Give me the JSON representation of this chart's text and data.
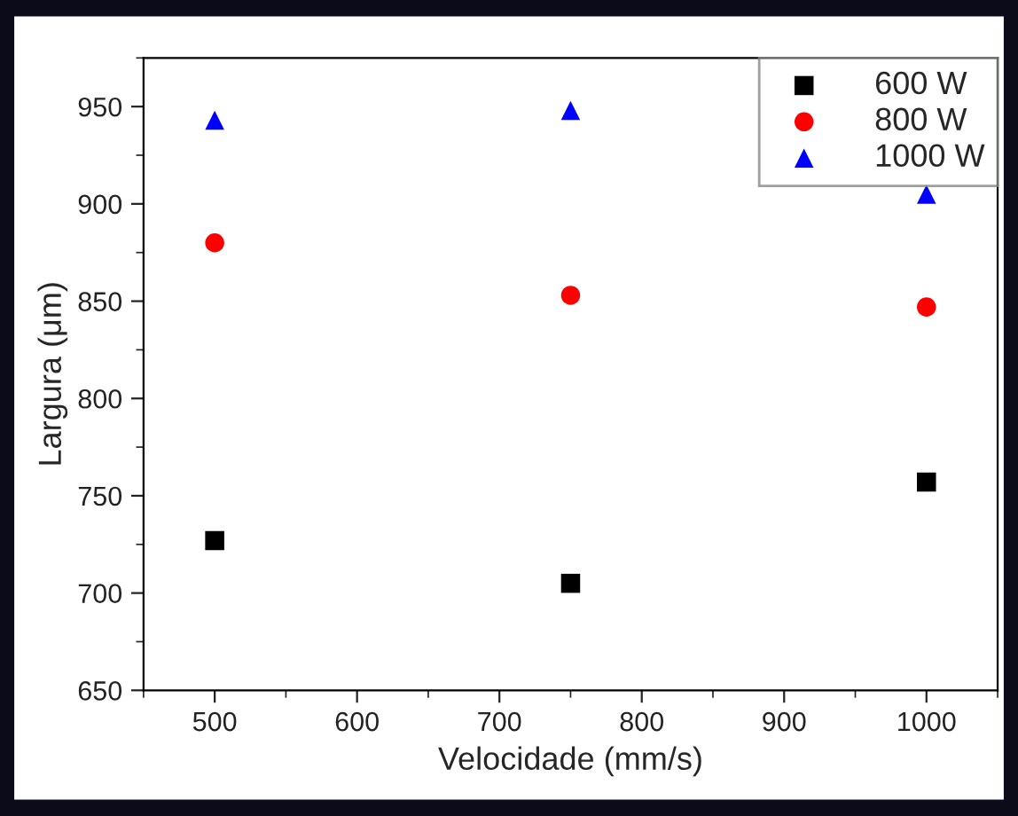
{
  "chart_data": {
    "type": "scatter",
    "xlabel": "Velocidade (mm/s)",
    "ylabel": "Largura (μm)",
    "x": [
      500,
      750,
      1000
    ],
    "series": [
      {
        "name": "600 W",
        "color": "#000000",
        "marker": "square",
        "values": [
          727,
          705,
          757
        ]
      },
      {
        "name": "800 W",
        "color": "#ff0000",
        "marker": "circle",
        "values": [
          880,
          853,
          847
        ]
      },
      {
        "name": "1000 W",
        "color": "#0000ff",
        "marker": "triangle",
        "values": [
          943,
          948,
          905
        ]
      }
    ],
    "xlim": [
      450,
      1050
    ],
    "xticks": [
      500,
      600,
      700,
      800,
      900,
      1000
    ],
    "ylim": [
      650,
      975
    ],
    "yticks": [
      650,
      700,
      750,
      800,
      850,
      900,
      950
    ],
    "grid": false,
    "legend": "top right"
  }
}
